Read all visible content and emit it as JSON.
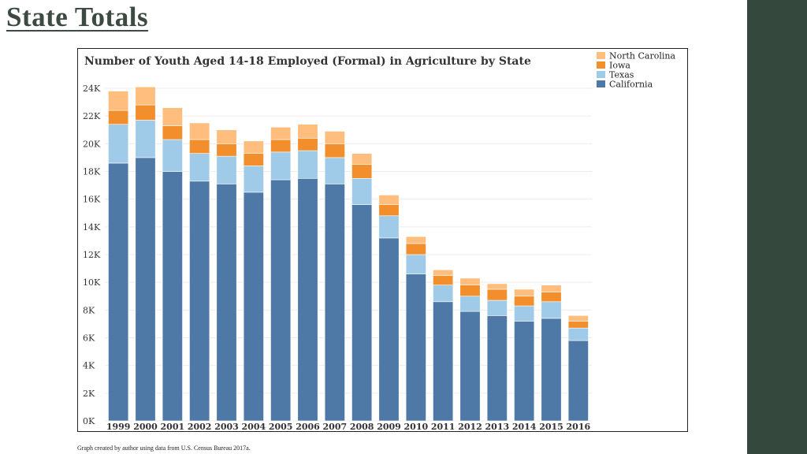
{
  "slide": {
    "title": "State Totals",
    "caption": "Graph created by author using data from U.S. Census Bureau 2017a."
  },
  "colors": {
    "California": "#4e79a7",
    "Texas": "#a0cbe8",
    "Iowa": "#f28e2b",
    "North Carolina": "#ffbe7d",
    "panel": "#35483e",
    "title": "#3c4a41"
  },
  "chart_data": {
    "type": "bar",
    "stacked": true,
    "title": "Number of Youth Aged 14-18 Employed (Formal) in Agriculture by State",
    "xlabel": "",
    "ylabel": "",
    "ylim": [
      0,
      24000
    ],
    "yticks": [
      0,
      2000,
      4000,
      6000,
      8000,
      10000,
      12000,
      14000,
      16000,
      18000,
      20000,
      22000,
      24000
    ],
    "ytick_labels": [
      "0K",
      "2K",
      "4K",
      "6K",
      "8K",
      "10K",
      "12K",
      "14K",
      "16K",
      "18K",
      "20K",
      "22K",
      "24K"
    ],
    "grid": true,
    "legend_position": "top-right",
    "legend": [
      "North Carolina",
      "Iowa",
      "Texas",
      "California"
    ],
    "categories": [
      "1999",
      "2000",
      "2001",
      "2002",
      "2003",
      "2004",
      "2005",
      "2006",
      "2007",
      "2008",
      "2009",
      "2010",
      "2011",
      "2012",
      "2013",
      "2014",
      "2015",
      "2016"
    ],
    "series": [
      {
        "name": "California",
        "values": [
          18600,
          19000,
          18000,
          17300,
          17100,
          16500,
          17400,
          17500,
          17100,
          15600,
          13200,
          10600,
          8600,
          7900,
          7600,
          7200,
          7400,
          5800
        ]
      },
      {
        "name": "Texas",
        "values": [
          2800,
          2700,
          2300,
          2000,
          2000,
          1900,
          2000,
          2000,
          1900,
          1900,
          1600,
          1400,
          1200,
          1100,
          1100,
          1100,
          1200,
          900
        ]
      },
      {
        "name": "Iowa",
        "values": [
          1000,
          1100,
          1000,
          1000,
          900,
          900,
          900,
          900,
          1000,
          1000,
          800,
          800,
          700,
          800,
          800,
          700,
          700,
          500
        ]
      },
      {
        "name": "North Carolina",
        "values": [
          1400,
          1300,
          1300,
          1200,
          1000,
          900,
          900,
          1000,
          900,
          800,
          700,
          500,
          400,
          500,
          400,
          500,
          500,
          400
        ]
      }
    ]
  }
}
